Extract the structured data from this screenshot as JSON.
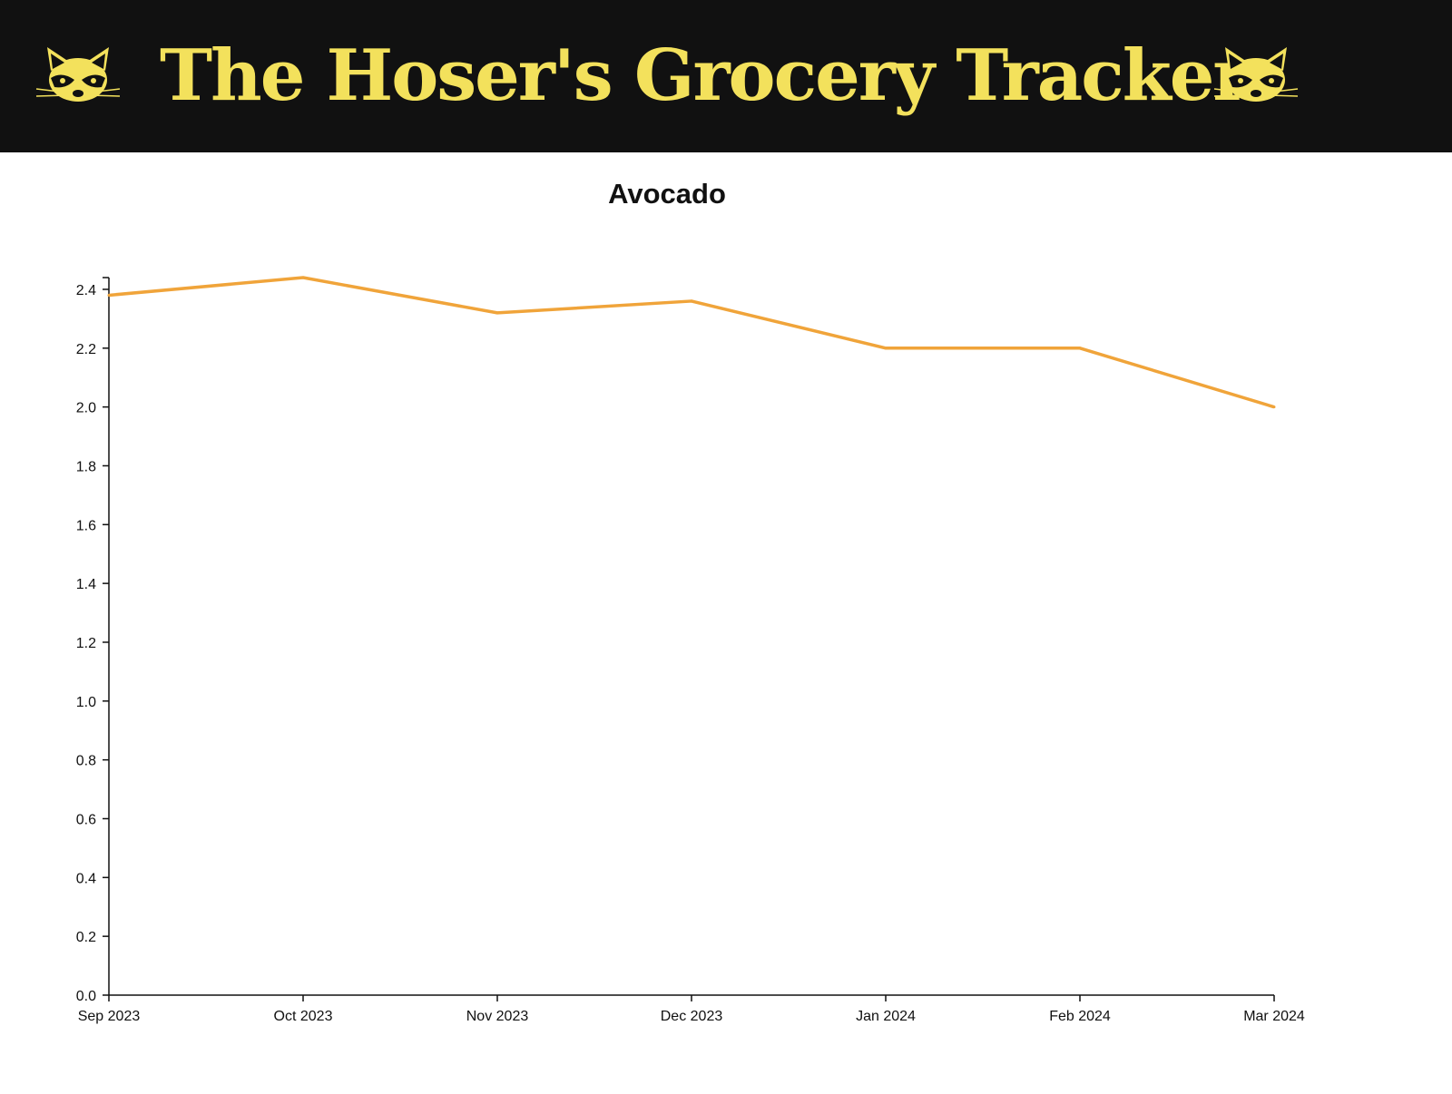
{
  "header": {
    "title": "The Hoser's Grocery Tracker",
    "logo_icon": "raccoon-icon",
    "background_color": "#111111",
    "title_color": "#f3e15c"
  },
  "chart_data": {
    "type": "line",
    "title": "Avocado",
    "xlabel": "",
    "ylabel": "",
    "x": [
      "Sep 2023",
      "Oct 2023",
      "Nov 2023",
      "Dec 2023",
      "Jan 2024",
      "Feb 2024",
      "Mar 2024"
    ],
    "series": [
      {
        "values": [
          2.38,
          2.44,
          2.32,
          2.36,
          2.2,
          2.2,
          2.0
        ],
        "color": "#f0a43a"
      }
    ],
    "ylim": [
      0,
      2.44
    ],
    "yticks": [
      "0.0",
      "0.2",
      "0.4",
      "0.6",
      "0.8",
      "1.0",
      "1.2",
      "1.4",
      "1.6",
      "1.8",
      "2.0",
      "2.2",
      "2.4"
    ],
    "grid": false,
    "legend": "none"
  }
}
